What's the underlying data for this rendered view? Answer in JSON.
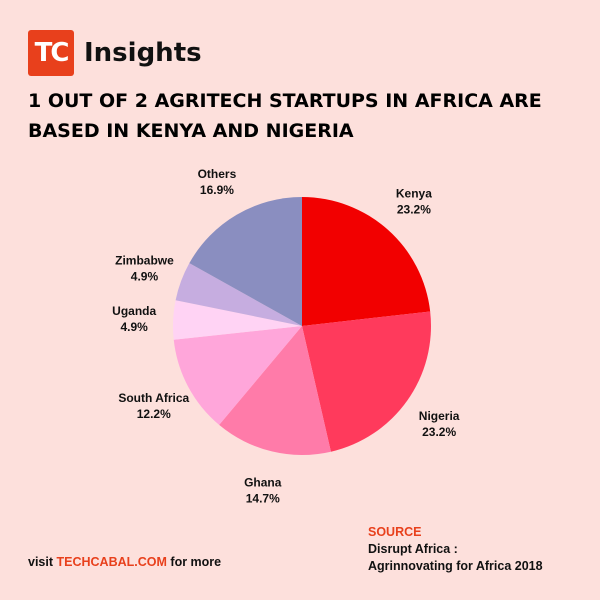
{
  "brand": {
    "logo_text": "TC",
    "name": "Insights"
  },
  "headline": {
    "line1": "1 OUT OF 2 AGRITECH STARTUPS IN AFRICA ARE",
    "line2": "BASED IN KENYA AND NIGERIA"
  },
  "chart_data": {
    "type": "pie",
    "title": "1 OUT OF 2 AGRITECH STARTUPS IN AFRICA ARE BASED IN KENYA AND NIGERIA",
    "slices": [
      {
        "label": "Kenya",
        "value": 23.2,
        "display": "23.2%",
        "color": "#f20000"
      },
      {
        "label": "Nigeria",
        "value": 23.2,
        "display": "23.2%",
        "color": "#ff3a5c"
      },
      {
        "label": "Ghana",
        "value": 14.7,
        "display": "14.7%",
        "color": "#ff7ba9"
      },
      {
        "label": "South Africa",
        "value": 12.2,
        "display": "12.2%",
        "color": "#ffa6da"
      },
      {
        "label": "Uganda",
        "value": 4.9,
        "display": "4.9%",
        "color": "#ffd3f4"
      },
      {
        "label": "Zimbabwe",
        "value": 4.9,
        "display": "4.9%",
        "color": "#c6ade0"
      },
      {
        "label": "Others",
        "value": 16.9,
        "display": "16.9%",
        "color": "#8a8ec0"
      }
    ]
  },
  "footer": {
    "visit_prefix": "visit",
    "visit_link": "TECHCABAL.COM",
    "visit_suffix": "for more",
    "source_title": "SOURCE",
    "source_line1": "Disrupt Africa :",
    "source_line2": "Agrinnovating for Africa 2018"
  }
}
